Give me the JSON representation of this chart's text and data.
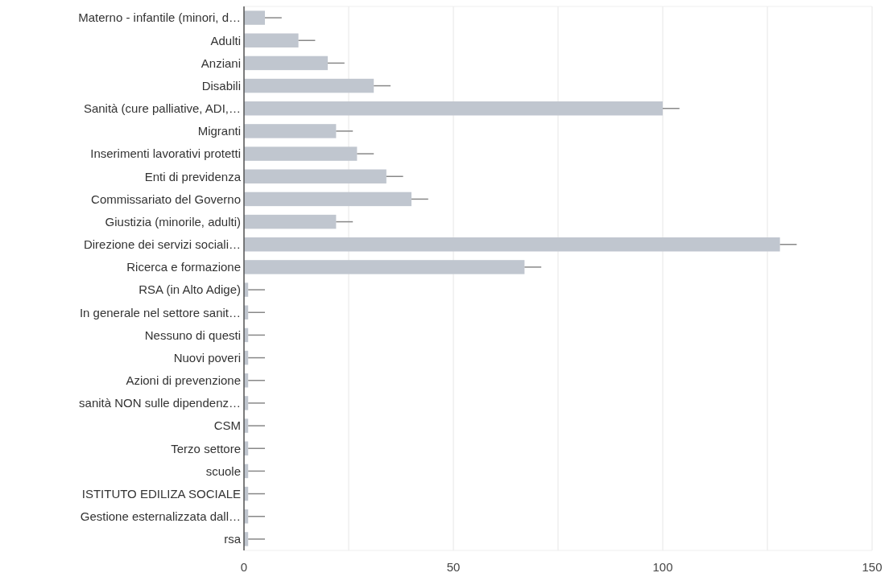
{
  "chart_data": {
    "type": "bar",
    "orientation": "horizontal",
    "categories": [
      "Materno - infantile (minori, d…",
      "Adulti",
      "Anziani",
      "Disabili",
      "Sanità (cure palliative, ADI,…",
      "Migranti",
      "Inserimenti lavorativi protetti",
      "Enti di previdenza",
      "Commissariato del Governo",
      "Giustizia (minorile, adulti)",
      "Direzione dei servizi sociali…",
      "Ricerca e formazione",
      "RSA (in Alto Adige)",
      "In generale nel settore sanit…",
      "Nessuno di questi",
      "Nuovi poveri",
      "Azioni di prevenzione",
      "sanità NON sulle dipendenz…",
      "CSM",
      "Terzo settore",
      "scuole",
      "ISTITUTO EDILIZA SOCIALE",
      "Gestione esternalizzata dall…",
      "rsa"
    ],
    "values": [
      5,
      13,
      20,
      31,
      100,
      22,
      27,
      34,
      40,
      22,
      128,
      67,
      1,
      1,
      1,
      1,
      1,
      1,
      1,
      1,
      1,
      1,
      1,
      1
    ],
    "errors": [
      [
        5,
        9
      ],
      [
        13,
        17
      ],
      [
        20,
        24
      ],
      [
        31,
        35
      ],
      [
        100,
        104
      ],
      [
        22,
        26
      ],
      [
        27,
        31
      ],
      [
        34,
        38
      ],
      [
        40,
        44
      ],
      [
        22,
        26
      ],
      [
        128,
        132
      ],
      [
        67,
        71
      ],
      [
        1,
        5
      ],
      [
        1,
        5
      ],
      [
        1,
        5
      ],
      [
        1,
        5
      ],
      [
        1,
        5
      ],
      [
        1,
        5
      ],
      [
        1,
        5
      ],
      [
        1,
        5
      ],
      [
        1,
        5
      ],
      [
        1,
        5
      ],
      [
        1,
        5
      ],
      [
        1,
        5
      ]
    ],
    "color": "#c0c6cf",
    "xlim": [
      0,
      150
    ],
    "xticks": [
      0,
      {
        "value": 25,
        "label": null
      },
      50,
      {
        "value": 75,
        "label": null
      },
      100,
      {
        "value": 125,
        "label": null
      },
      150
    ],
    "grid": "x"
  }
}
